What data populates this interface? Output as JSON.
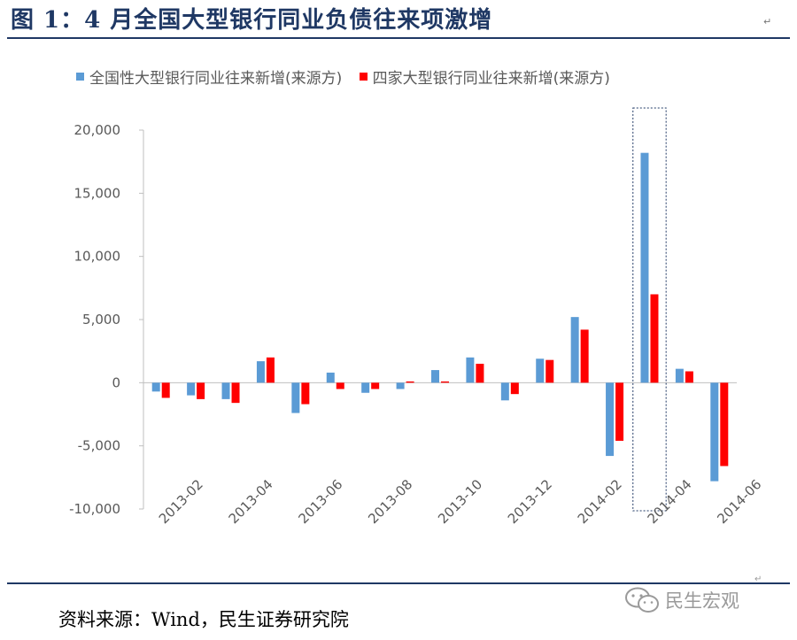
{
  "figure": {
    "title": "图 1：4 月全国大型银行同业负债往来项激增",
    "title_mark": "↵",
    "source": "资料来源：Wind，民生证券研究院",
    "watermark": "民生宏观",
    "end_mark": "↵"
  },
  "chart_data": {
    "type": "bar",
    "title": "",
    "xlabel": "",
    "ylabel": "",
    "ylim": [
      -10000,
      20000
    ],
    "yticks": [
      20000,
      15000,
      10000,
      5000,
      0,
      -5000,
      -10000
    ],
    "ytick_labels": [
      "20,000",
      "15,000",
      "10,000",
      "5,000",
      "0",
      "-5,000",
      "-10,000"
    ],
    "categories": [
      "2013-02",
      "2013-03",
      "2013-04",
      "2013-05",
      "2013-06",
      "2013-07",
      "2013-08",
      "2013-09",
      "2013-10",
      "2013-11",
      "2013-12",
      "2014-01",
      "2014-02",
      "2014-03",
      "2014-04",
      "2014-05",
      "2014-06"
    ],
    "xtick_labels": [
      "2013-02",
      "2013-04",
      "2013-06",
      "2013-08",
      "2013-10",
      "2013-12",
      "2014-02",
      "2014-04",
      "2014-06"
    ],
    "series": [
      {
        "name": "全国性大型银行同业往来新增(来源方)",
        "color": "#5b9bd5",
        "values": [
          -700,
          -1000,
          -1300,
          1700,
          -2400,
          800,
          -800,
          -500,
          1000,
          2000,
          -1400,
          1900,
          5200,
          -5800,
          18200,
          1100,
          -7800
        ]
      },
      {
        "name": "四家大型银行同业往来新增(来源方)",
        "color": "#ff0000",
        "values": [
          -1200,
          -1300,
          -1600,
          2000,
          -1700,
          -500,
          -500,
          100,
          100,
          1500,
          -900,
          1800,
          4200,
          -4600,
          7000,
          900,
          -6600
        ]
      }
    ],
    "highlight_category": "2014-04",
    "grid": false,
    "legend_position": "top"
  }
}
